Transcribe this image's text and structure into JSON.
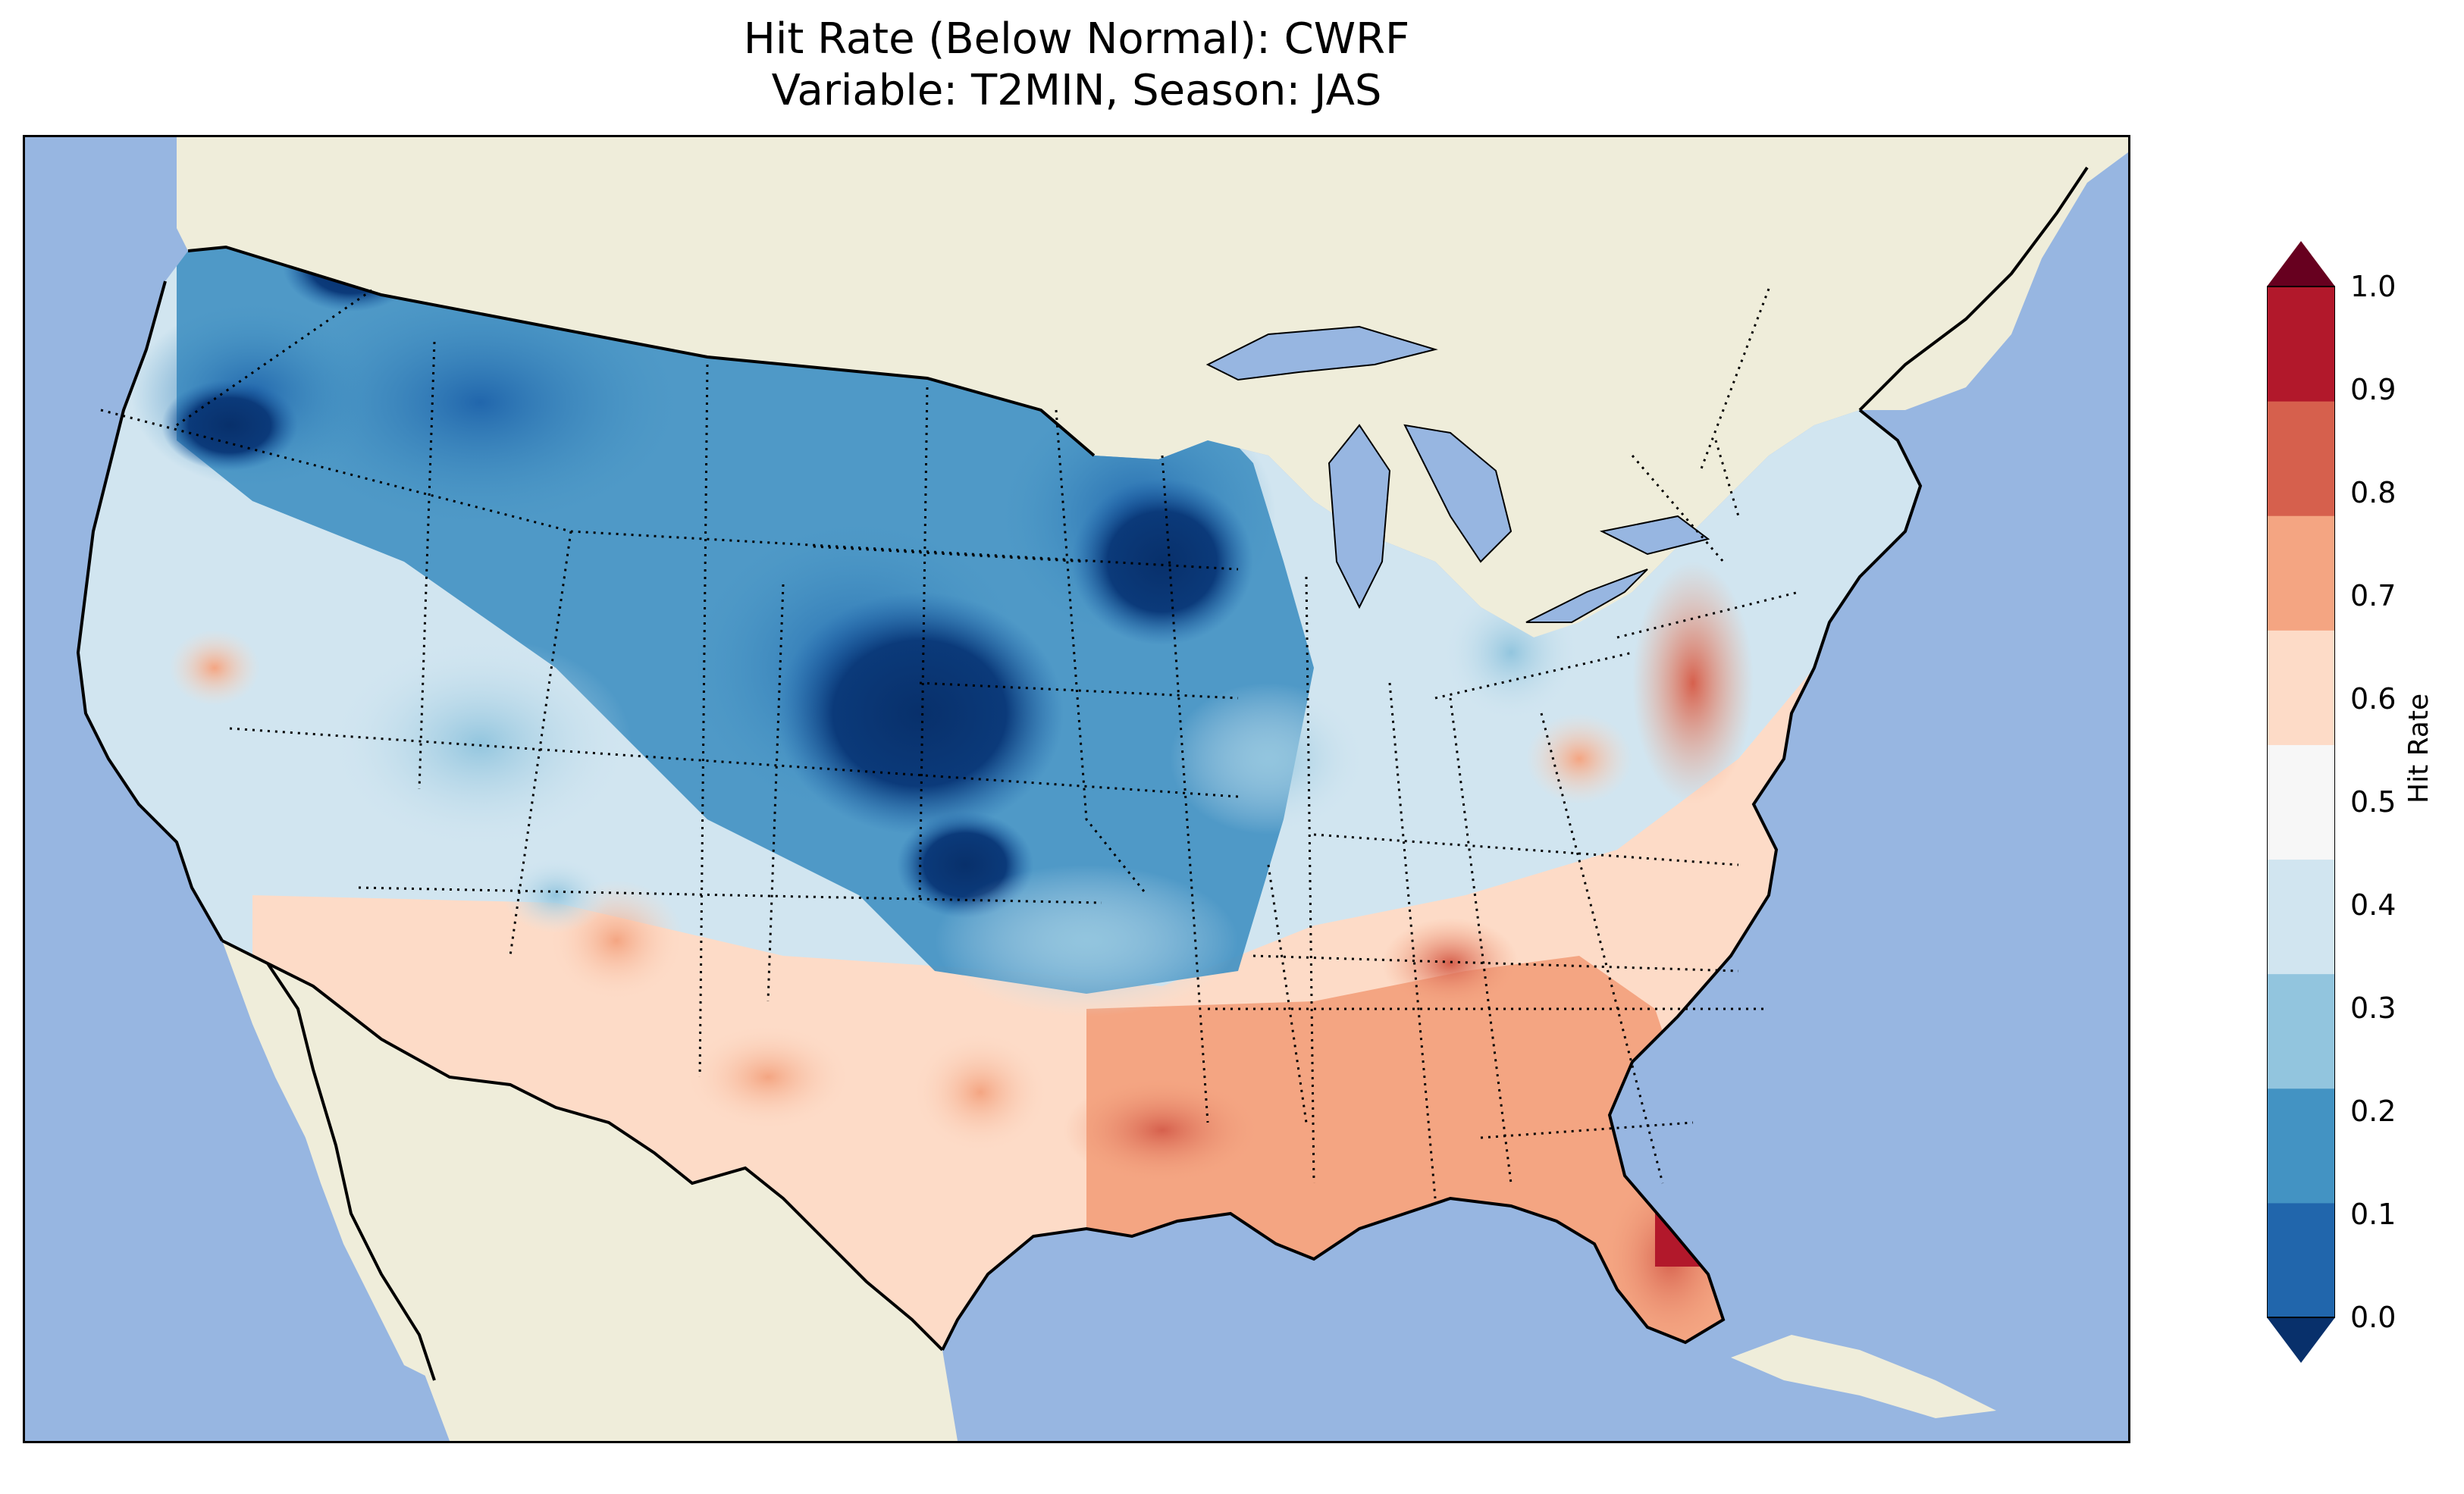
{
  "title": {
    "line1": "Hit Rate (Below Normal): CWRF",
    "line2": "Variable: T2MIN, Season: JAS"
  },
  "colorbar": {
    "label": "Hit Rate",
    "ticks": [
      "0.0",
      "0.1",
      "0.2",
      "0.3",
      "0.4",
      "0.5",
      "0.6",
      "0.7",
      "0.8",
      "0.9",
      "1.0"
    ],
    "colors": [
      "#08306b",
      "#2166ac",
      "#4393c3",
      "#92c5de",
      "#d1e5f0",
      "#f7f7f7",
      "#fddbc7",
      "#f4a582",
      "#d6604d",
      "#b2182b",
      "#67001f"
    ],
    "extend": "both"
  },
  "map": {
    "ocean_color": "#97b6e1",
    "land_color": "#efedda",
    "region": "Contiguous United States"
  }
}
